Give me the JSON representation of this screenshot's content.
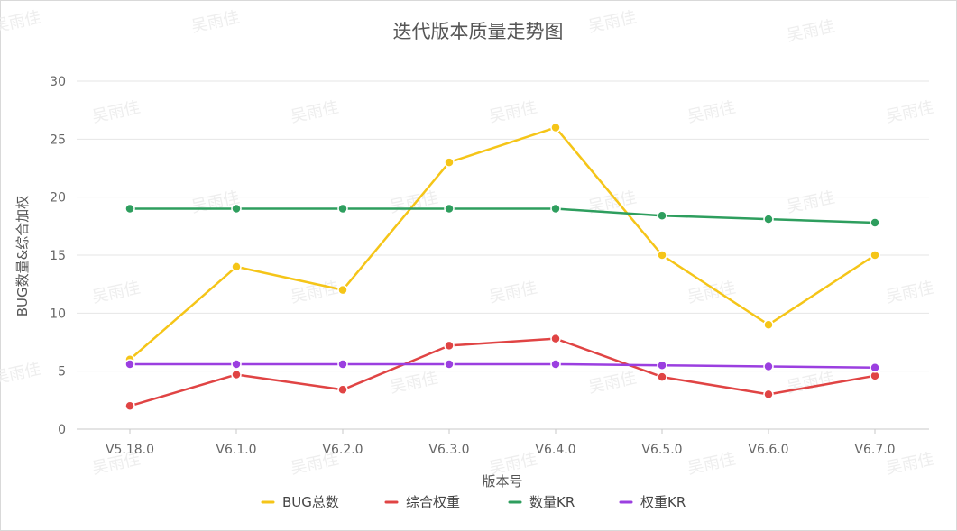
{
  "watermark": "吴雨佳",
  "chart_data": {
    "type": "line",
    "title": "迭代版本质量走势图",
    "xlabel": "版本号",
    "ylabel": "BUG数量&综合加权",
    "ylim": [
      0,
      30
    ],
    "yticks": [
      0,
      5,
      10,
      15,
      20,
      25,
      30
    ],
    "grid": true,
    "legend_position": "bottom",
    "categories": [
      "V5.18.0",
      "V6.1.0",
      "V6.2.0",
      "V6.3.0",
      "V6.4.0",
      "V6.5.0",
      "V6.6.0",
      "V6.7.0"
    ],
    "series": [
      {
        "name": "BUG总数",
        "color": "#f5c518",
        "values": [
          6,
          14,
          12,
          23,
          26,
          15,
          9,
          15
        ]
      },
      {
        "name": "综合权重",
        "color": "#e04444",
        "values": [
          2,
          4.7,
          3.4,
          7.2,
          7.8,
          4.5,
          3,
          4.6
        ]
      },
      {
        "name": "数量KR",
        "color": "#2e9e5e",
        "values": [
          19,
          19,
          19,
          19,
          19,
          18.4,
          18.1,
          17.8
        ]
      },
      {
        "name": "权重KR",
        "color": "#9b3fe0",
        "values": [
          5.6,
          5.6,
          5.6,
          5.6,
          5.6,
          5.5,
          5.4,
          5.3
        ]
      }
    ]
  }
}
